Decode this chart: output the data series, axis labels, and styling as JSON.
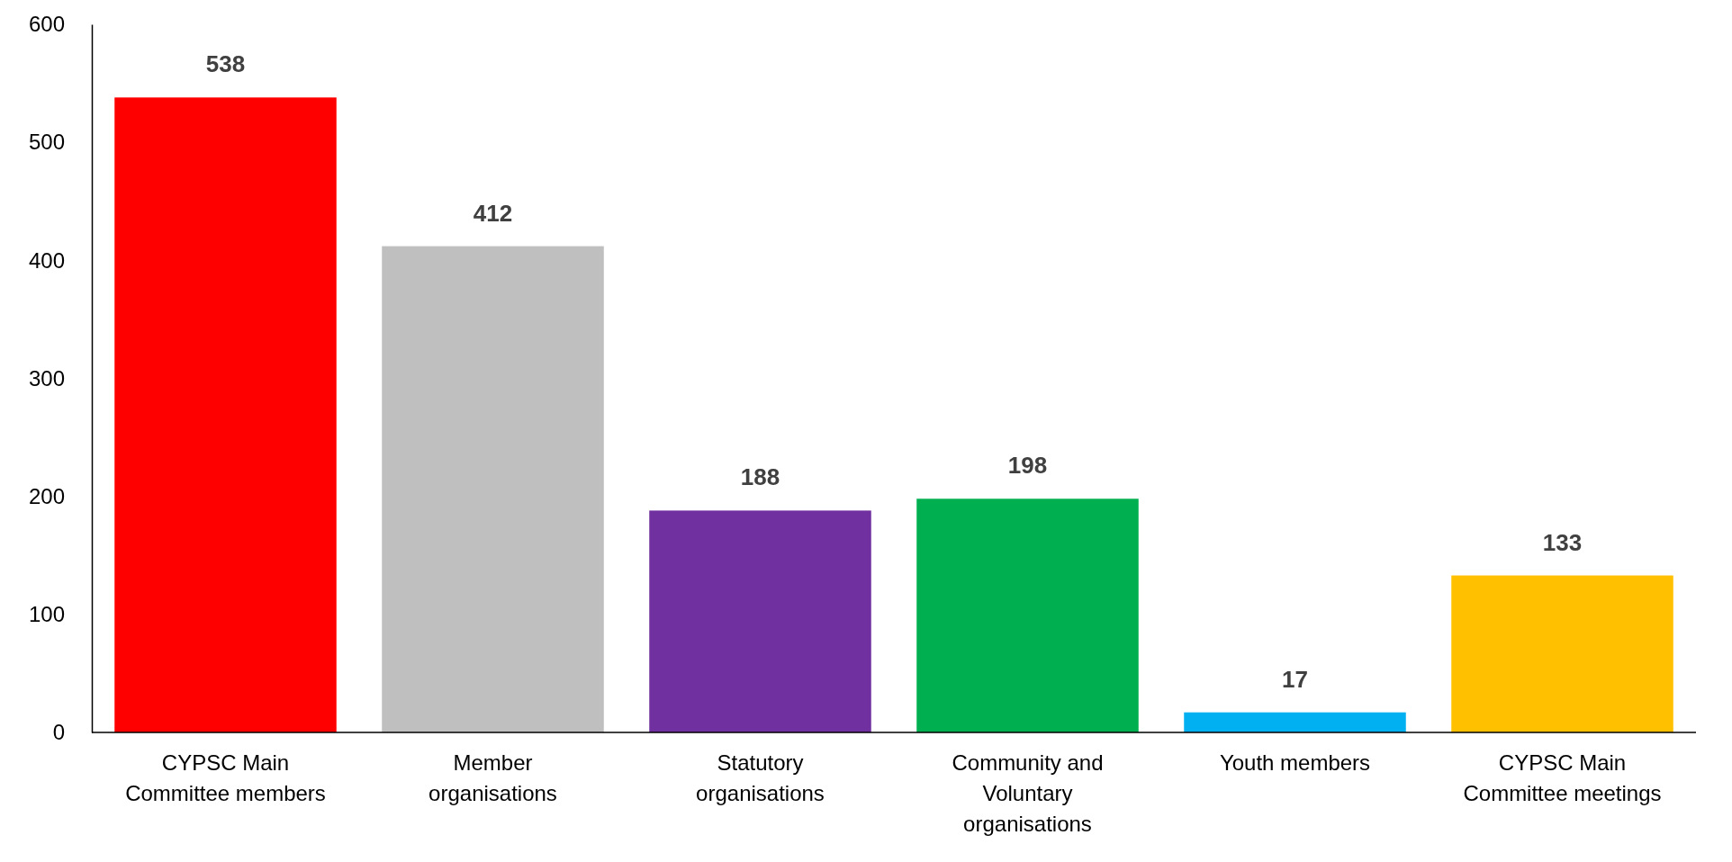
{
  "chart_data": {
    "type": "bar",
    "categories": [
      "CYPSC Main Committee members",
      "Member organisations",
      "Statutory organisations",
      "Community and Voluntary organisations",
      "Youth members",
      "CYPSC Main Committee meetings"
    ],
    "values": [
      538,
      412,
      188,
      198,
      17,
      133
    ],
    "colors": [
      "#ff0000",
      "#bfbfbf",
      "#7030a0",
      "#00b050",
      "#00b0f0",
      "#ffc000"
    ],
    "ylim": [
      0,
      600
    ],
    "yticks": [
      0,
      100,
      200,
      300,
      400,
      500,
      600
    ],
    "data_labels": true
  }
}
